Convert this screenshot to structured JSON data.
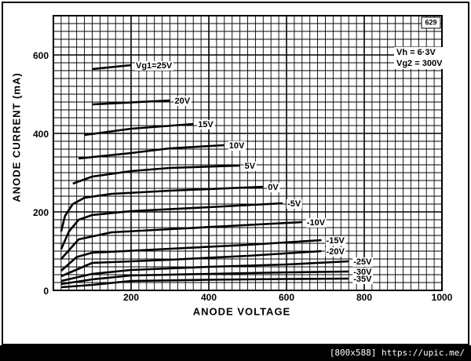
{
  "chart_data": {
    "type": "line",
    "x_label": "ANODE VOLTAGE",
    "y_label": "ANODE CURRENT (mA)",
    "annotations": [
      "629",
      "Vh = 6·3V",
      "Vg2 = 300V"
    ],
    "watermark": "[800x588] https://upic.me/",
    "xlim": [
      0,
      1000
    ],
    "ylim": [
      0,
      700
    ],
    "xticks": [
      200,
      400,
      600,
      800,
      1000
    ],
    "yticks": [
      0,
      200,
      400,
      600
    ],
    "grid": true,
    "series": [
      {
        "name": "Vg1=25V",
        "color": "#000000",
        "x": [
          100,
          200
        ],
        "values": [
          564,
          574
        ]
      },
      {
        "name": "20V",
        "color": "#000000",
        "x": [
          100,
          300
        ],
        "values": [
          474,
          484
        ]
      },
      {
        "name": "15V",
        "color": "#000000",
        "x": [
          80,
          200,
          360
        ],
        "values": [
          396,
          412,
          424
        ]
      },
      {
        "name": "10V",
        "color": "#000000",
        "x": [
          65,
          200,
          300,
          440
        ],
        "values": [
          336,
          350,
          362,
          370
        ]
      },
      {
        "name": "5V",
        "color": "#000000",
        "x": [
          50,
          100,
          200,
          300,
          480
        ],
        "values": [
          272,
          290,
          304,
          312,
          318
        ]
      },
      {
        "name": "0V",
        "color": "#000000",
        "x": [
          20,
          30,
          50,
          80,
          150,
          300,
          540
        ],
        "values": [
          150,
          190,
          220,
          236,
          246,
          254,
          264
        ]
      },
      {
        "name": "-5V",
        "color": "#000000",
        "x": [
          20,
          40,
          65,
          100,
          200,
          400,
          590
        ],
        "values": [
          105,
          150,
          180,
          192,
          202,
          212,
          222
        ]
      },
      {
        "name": "-10V",
        "color": "#000000",
        "x": [
          20,
          65,
          150,
          300,
          450,
          640
        ],
        "values": [
          80,
          130,
          148,
          156,
          164,
          174
        ]
      },
      {
        "name": "-15V",
        "color": "#000000",
        "x": [
          20,
          60,
          100,
          300,
          500,
          690
        ],
        "values": [
          50,
          85,
          96,
          106,
          116,
          128
        ]
      },
      {
        "name": "-20V",
        "color": "#000000",
        "x": [
          20,
          100,
          300,
          500,
          690
        ],
        "values": [
          36,
          70,
          78,
          88,
          100
        ]
      },
      {
        "name": "-25V",
        "color": "#000000",
        "x": [
          20,
          100,
          200,
          400,
          600,
          760
        ],
        "values": [
          24,
          42,
          52,
          60,
          66,
          74
        ]
      },
      {
        "name": "-30V",
        "color": "#000000",
        "x": [
          20,
          100,
          200,
          400,
          600,
          760
        ],
        "values": [
          16,
          28,
          38,
          42,
          46,
          48
        ]
      },
      {
        "name": "-35V",
        "color": "#000000",
        "x": [
          20,
          100,
          200,
          400,
          600,
          760
        ],
        "values": [
          8,
          14,
          24,
          27,
          29,
          30
        ]
      }
    ]
  }
}
